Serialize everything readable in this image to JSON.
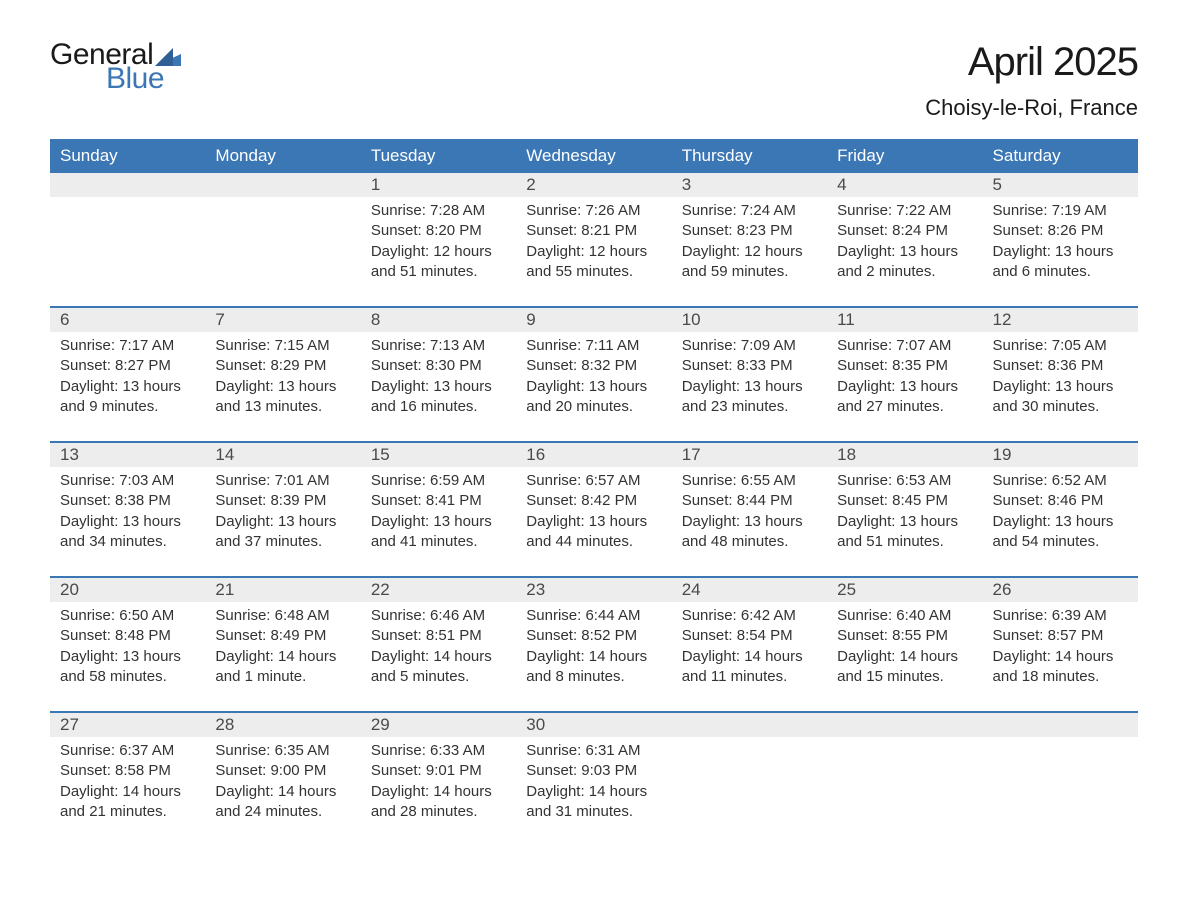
{
  "logo": {
    "line1": "General",
    "line2": "Blue",
    "text_color": "#1a1a1a",
    "blue_color": "#3b76b5"
  },
  "title": "April 2025",
  "location": "Choisy-le-Roi, France",
  "colors": {
    "header_bg": "#3b76b5",
    "header_text": "#ffffff",
    "daynum_bg": "#ededed",
    "body_text": "#333333",
    "page_bg": "#ffffff",
    "week_divider": "#3b76b5"
  },
  "typography": {
    "title_fontsize": 40,
    "location_fontsize": 22,
    "dow_fontsize": 17,
    "daynum_fontsize": 17,
    "cell_fontsize": 15,
    "logo_fontsize": 30
  },
  "days_of_week": [
    "Sunday",
    "Monday",
    "Tuesday",
    "Wednesday",
    "Thursday",
    "Friday",
    "Saturday"
  ],
  "weeks": [
    {
      "cells": [
        {
          "num": "",
          "sunrise": "",
          "sunset": "",
          "daylight": ""
        },
        {
          "num": "",
          "sunrise": "",
          "sunset": "",
          "daylight": ""
        },
        {
          "num": "1",
          "sunrise": "Sunrise: 7:28 AM",
          "sunset": "Sunset: 8:20 PM",
          "daylight": "Daylight: 12 hours and 51 minutes."
        },
        {
          "num": "2",
          "sunrise": "Sunrise: 7:26 AM",
          "sunset": "Sunset: 8:21 PM",
          "daylight": "Daylight: 12 hours and 55 minutes."
        },
        {
          "num": "3",
          "sunrise": "Sunrise: 7:24 AM",
          "sunset": "Sunset: 8:23 PM",
          "daylight": "Daylight: 12 hours and 59 minutes."
        },
        {
          "num": "4",
          "sunrise": "Sunrise: 7:22 AM",
          "sunset": "Sunset: 8:24 PM",
          "daylight": "Daylight: 13 hours and 2 minutes."
        },
        {
          "num": "5",
          "sunrise": "Sunrise: 7:19 AM",
          "sunset": "Sunset: 8:26 PM",
          "daylight": "Daylight: 13 hours and 6 minutes."
        }
      ]
    },
    {
      "cells": [
        {
          "num": "6",
          "sunrise": "Sunrise: 7:17 AM",
          "sunset": "Sunset: 8:27 PM",
          "daylight": "Daylight: 13 hours and 9 minutes."
        },
        {
          "num": "7",
          "sunrise": "Sunrise: 7:15 AM",
          "sunset": "Sunset: 8:29 PM",
          "daylight": "Daylight: 13 hours and 13 minutes."
        },
        {
          "num": "8",
          "sunrise": "Sunrise: 7:13 AM",
          "sunset": "Sunset: 8:30 PM",
          "daylight": "Daylight: 13 hours and 16 minutes."
        },
        {
          "num": "9",
          "sunrise": "Sunrise: 7:11 AM",
          "sunset": "Sunset: 8:32 PM",
          "daylight": "Daylight: 13 hours and 20 minutes."
        },
        {
          "num": "10",
          "sunrise": "Sunrise: 7:09 AM",
          "sunset": "Sunset: 8:33 PM",
          "daylight": "Daylight: 13 hours and 23 minutes."
        },
        {
          "num": "11",
          "sunrise": "Sunrise: 7:07 AM",
          "sunset": "Sunset: 8:35 PM",
          "daylight": "Daylight: 13 hours and 27 minutes."
        },
        {
          "num": "12",
          "sunrise": "Sunrise: 7:05 AM",
          "sunset": "Sunset: 8:36 PM",
          "daylight": "Daylight: 13 hours and 30 minutes."
        }
      ]
    },
    {
      "cells": [
        {
          "num": "13",
          "sunrise": "Sunrise: 7:03 AM",
          "sunset": "Sunset: 8:38 PM",
          "daylight": "Daylight: 13 hours and 34 minutes."
        },
        {
          "num": "14",
          "sunrise": "Sunrise: 7:01 AM",
          "sunset": "Sunset: 8:39 PM",
          "daylight": "Daylight: 13 hours and 37 minutes."
        },
        {
          "num": "15",
          "sunrise": "Sunrise: 6:59 AM",
          "sunset": "Sunset: 8:41 PM",
          "daylight": "Daylight: 13 hours and 41 minutes."
        },
        {
          "num": "16",
          "sunrise": "Sunrise: 6:57 AM",
          "sunset": "Sunset: 8:42 PM",
          "daylight": "Daylight: 13 hours and 44 minutes."
        },
        {
          "num": "17",
          "sunrise": "Sunrise: 6:55 AM",
          "sunset": "Sunset: 8:44 PM",
          "daylight": "Daylight: 13 hours and 48 minutes."
        },
        {
          "num": "18",
          "sunrise": "Sunrise: 6:53 AM",
          "sunset": "Sunset: 8:45 PM",
          "daylight": "Daylight: 13 hours and 51 minutes."
        },
        {
          "num": "19",
          "sunrise": "Sunrise: 6:52 AM",
          "sunset": "Sunset: 8:46 PM",
          "daylight": "Daylight: 13 hours and 54 minutes."
        }
      ]
    },
    {
      "cells": [
        {
          "num": "20",
          "sunrise": "Sunrise: 6:50 AM",
          "sunset": "Sunset: 8:48 PM",
          "daylight": "Daylight: 13 hours and 58 minutes."
        },
        {
          "num": "21",
          "sunrise": "Sunrise: 6:48 AM",
          "sunset": "Sunset: 8:49 PM",
          "daylight": "Daylight: 14 hours and 1 minute."
        },
        {
          "num": "22",
          "sunrise": "Sunrise: 6:46 AM",
          "sunset": "Sunset: 8:51 PM",
          "daylight": "Daylight: 14 hours and 5 minutes."
        },
        {
          "num": "23",
          "sunrise": "Sunrise: 6:44 AM",
          "sunset": "Sunset: 8:52 PM",
          "daylight": "Daylight: 14 hours and 8 minutes."
        },
        {
          "num": "24",
          "sunrise": "Sunrise: 6:42 AM",
          "sunset": "Sunset: 8:54 PM",
          "daylight": "Daylight: 14 hours and 11 minutes."
        },
        {
          "num": "25",
          "sunrise": "Sunrise: 6:40 AM",
          "sunset": "Sunset: 8:55 PM",
          "daylight": "Daylight: 14 hours and 15 minutes."
        },
        {
          "num": "26",
          "sunrise": "Sunrise: 6:39 AM",
          "sunset": "Sunset: 8:57 PM",
          "daylight": "Daylight: 14 hours and 18 minutes."
        }
      ]
    },
    {
      "cells": [
        {
          "num": "27",
          "sunrise": "Sunrise: 6:37 AM",
          "sunset": "Sunset: 8:58 PM",
          "daylight": "Daylight: 14 hours and 21 minutes."
        },
        {
          "num": "28",
          "sunrise": "Sunrise: 6:35 AM",
          "sunset": "Sunset: 9:00 PM",
          "daylight": "Daylight: 14 hours and 24 minutes."
        },
        {
          "num": "29",
          "sunrise": "Sunrise: 6:33 AM",
          "sunset": "Sunset: 9:01 PM",
          "daylight": "Daylight: 14 hours and 28 minutes."
        },
        {
          "num": "30",
          "sunrise": "Sunrise: 6:31 AM",
          "sunset": "Sunset: 9:03 PM",
          "daylight": "Daylight: 14 hours and 31 minutes."
        },
        {
          "num": "",
          "sunrise": "",
          "sunset": "",
          "daylight": ""
        },
        {
          "num": "",
          "sunrise": "",
          "sunset": "",
          "daylight": ""
        },
        {
          "num": "",
          "sunrise": "",
          "sunset": "",
          "daylight": ""
        }
      ]
    }
  ]
}
